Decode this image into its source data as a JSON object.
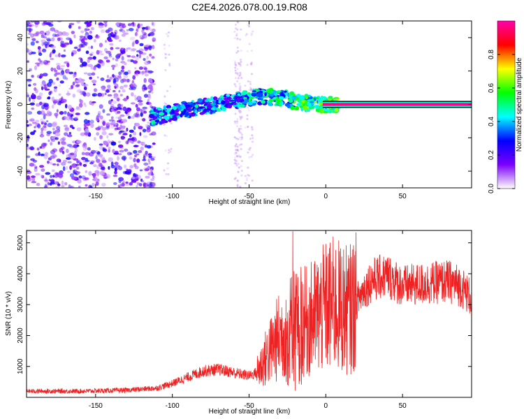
{
  "title": "C2E4.2026.078.00.19.R08",
  "chart_data": [
    {
      "type": "heatmap",
      "name": "spectrogram",
      "xlabel": "Height of straight line (km)",
      "ylabel": "Frequency (Hz)",
      "xlim": [
        -195,
        95
      ],
      "ylim": [
        -50,
        50
      ],
      "xticks": [
        -150,
        -100,
        -50,
        0,
        50
      ],
      "yticks": [
        -40,
        -20,
        0,
        20,
        40
      ],
      "xtick_labels": [
        "-150",
        "-100",
        "-50",
        "0",
        "50"
      ],
      "ytick_labels": [
        "-40",
        "-20",
        "0",
        "20",
        "40"
      ],
      "colorbar": {
        "label": "Normalized spectral amplitude",
        "range": [
          0,
          1
        ],
        "ticks": [
          0.0,
          0.2,
          0.4,
          0.6,
          0.8
        ],
        "tick_labels": [
          "0.0",
          "0.2",
          "0.4",
          "0.6",
          "0.8"
        ],
        "colormap": [
          "#ffffff",
          "#7b00ff",
          "#0000ff",
          "#00ffff",
          "#00ff00",
          "#ffff00",
          "#ff0000",
          "#ff00aa"
        ]
      },
      "ridge": [
        {
          "x": -113,
          "y": -8
        },
        {
          "x": -100,
          "y": -5
        },
        {
          "x": -85,
          "y": -2
        },
        {
          "x": -70,
          "y": 0
        },
        {
          "x": -55,
          "y": 3
        },
        {
          "x": -40,
          "y": 5
        },
        {
          "x": -25,
          "y": 3
        },
        {
          "x": -15,
          "y": 1
        },
        {
          "x": 0,
          "y": 0
        },
        {
          "x": 50,
          "y": 0
        },
        {
          "x": 95,
          "y": 0
        }
      ]
    },
    {
      "type": "line",
      "name": "snr",
      "xlabel": "Height of straight line (km)",
      "ylabel": "SNR (10 * v/v)",
      "xlim": [
        -195,
        95
      ],
      "ylim": [
        0,
        5400
      ],
      "xticks": [
        -150,
        -100,
        -50,
        0,
        50
      ],
      "yticks": [
        1000,
        2000,
        3000,
        4000,
        5000
      ],
      "xtick_labels": [
        "-150",
        "-100",
        "-50",
        "0",
        "50"
      ],
      "ytick_labels": [
        "1000",
        "2000",
        "3000",
        "4000",
        "5000"
      ],
      "series_color": "#ee2222",
      "envelope": [
        {
          "x": -195,
          "y": 200
        },
        {
          "x": -160,
          "y": 200
        },
        {
          "x": -130,
          "y": 230
        },
        {
          "x": -110,
          "y": 300
        },
        {
          "x": -100,
          "y": 450
        },
        {
          "x": -90,
          "y": 650
        },
        {
          "x": -80,
          "y": 850
        },
        {
          "x": -70,
          "y": 900
        },
        {
          "x": -60,
          "y": 800
        },
        {
          "x": -50,
          "y": 700
        },
        {
          "x": -45,
          "y": 800
        },
        {
          "x": -40,
          "y": 1200
        },
        {
          "x": -35,
          "y": 1600
        },
        {
          "x": -30,
          "y": 2000
        },
        {
          "x": -25,
          "y": 2200
        },
        {
          "x": -20,
          "y": 2500
        },
        {
          "x": -15,
          "y": 2400
        },
        {
          "x": -10,
          "y": 2500
        },
        {
          "x": -5,
          "y": 2700
        },
        {
          "x": 0,
          "y": 2900
        },
        {
          "x": 5,
          "y": 3000
        },
        {
          "x": 10,
          "y": 2900
        },
        {
          "x": 15,
          "y": 2800
        },
        {
          "x": 20,
          "y": 3100
        },
        {
          "x": 25,
          "y": 3500
        },
        {
          "x": 30,
          "y": 3800
        },
        {
          "x": 40,
          "y": 3950
        },
        {
          "x": 50,
          "y": 3600
        },
        {
          "x": 60,
          "y": 3650
        },
        {
          "x": 70,
          "y": 3700
        },
        {
          "x": 80,
          "y": 3750
        },
        {
          "x": 88,
          "y": 3600
        },
        {
          "x": 95,
          "y": 3200
        }
      ]
    }
  ]
}
